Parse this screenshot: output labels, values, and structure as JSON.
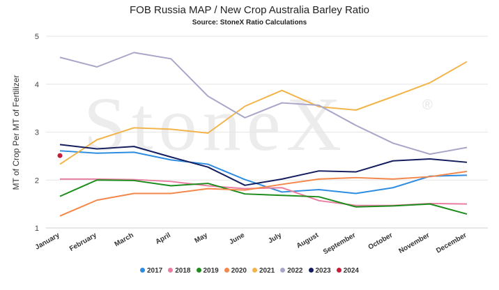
{
  "chart_data": {
    "type": "line",
    "title": "FOB Russia MAP / New Crop Australia Barley Ratio",
    "subtitle": "Source: StoneX Ratio Calculations",
    "ylabel": "MT of Crop Per MT of Fertilizer",
    "xlabel": "",
    "watermark": "StoneX",
    "watermark_mark": "®",
    "categories": [
      "January",
      "February",
      "March",
      "April",
      "May",
      "June",
      "July",
      "August",
      "September",
      "October",
      "November",
      "December"
    ],
    "yticks": [
      "1",
      "2",
      "3",
      "4",
      "5"
    ],
    "ylim": [
      1,
      5
    ],
    "grid": true,
    "legend_position": "bottom",
    "series": [
      {
        "name": "2017",
        "color": "#2e8de0",
        "values": [
          2.61,
          2.56,
          2.58,
          2.42,
          2.33,
          2.01,
          1.75,
          1.8,
          1.72,
          1.84,
          2.08,
          2.1
        ]
      },
      {
        "name": "2018",
        "color": "#e87fa0",
        "values": [
          2.02,
          2.02,
          2.01,
          1.97,
          1.88,
          1.82,
          1.84,
          1.57,
          1.47,
          1.47,
          1.51,
          1.5
        ]
      },
      {
        "name": "2019",
        "color": "#1c8c1c",
        "values": [
          1.66,
          2.0,
          1.99,
          1.88,
          1.93,
          1.71,
          1.68,
          1.65,
          1.44,
          1.46,
          1.5,
          1.29
        ]
      },
      {
        "name": "2020",
        "color": "#f4874b",
        "values": [
          1.25,
          1.58,
          1.72,
          1.72,
          1.82,
          1.79,
          1.91,
          2.02,
          2.05,
          2.02,
          2.07,
          2.18
        ]
      },
      {
        "name": "2021",
        "color": "#f2b449",
        "values": [
          2.33,
          2.84,
          3.09,
          3.06,
          2.98,
          3.54,
          3.87,
          3.53,
          3.46,
          3.74,
          4.03,
          4.47
        ]
      },
      {
        "name": "2022",
        "color": "#a8a6c8",
        "values": [
          4.56,
          4.36,
          4.66,
          4.53,
          3.75,
          3.3,
          3.61,
          3.56,
          3.14,
          2.77,
          2.54,
          2.68
        ]
      },
      {
        "name": "2023",
        "color": "#141d5e",
        "values": [
          2.74,
          2.65,
          2.7,
          2.48,
          2.27,
          1.89,
          2.02,
          2.19,
          2.17,
          2.4,
          2.44,
          2.37
        ]
      },
      {
        "name": "2024",
        "color": "#c41e3a",
        "values": [
          2.51,
          null,
          null,
          null,
          null,
          null,
          null,
          null,
          null,
          null,
          null,
          null
        ]
      }
    ]
  }
}
